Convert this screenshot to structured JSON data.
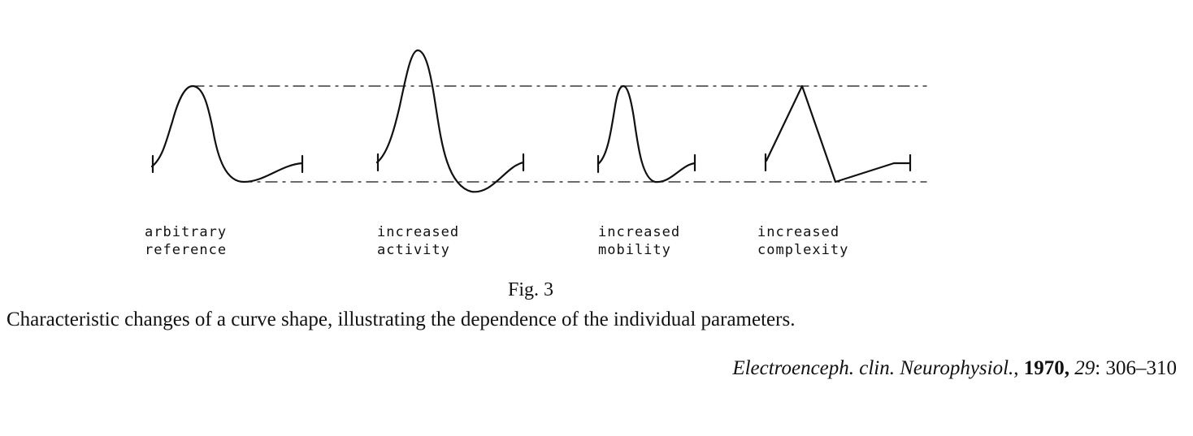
{
  "figure": {
    "panels": [
      {
        "id": "arbitrary-reference",
        "label_lines": [
          "arbitrary",
          "reference"
        ]
      },
      {
        "id": "increased-activity",
        "label_lines": [
          "increased",
          "activity"
        ]
      },
      {
        "id": "increased-mobility",
        "label_lines": [
          "increased",
          "mobility"
        ]
      },
      {
        "id": "increased-complexity",
        "label_lines": [
          "increased",
          "complexity"
        ]
      }
    ],
    "line_color": "#111111",
    "reference_lines": [
      "upper-dashed",
      "lower-dashed"
    ]
  },
  "caption": {
    "fig_number": "Fig. 3",
    "text": "Characteristic changes of a curve shape, illustrating the dependence of the individual parameters."
  },
  "citation": {
    "journal": "Electroenceph. clin. Neurophysiol.",
    "sep1": ", ",
    "year": "1970,",
    "sep2": " ",
    "volume": "29",
    "pages": ": 306–310"
  }
}
